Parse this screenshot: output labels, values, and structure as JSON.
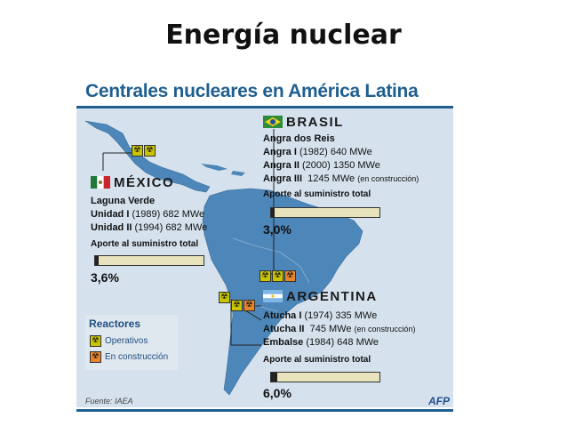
{
  "slide_title": "Energía nuclear",
  "header": "Centrales nucleares en América Latina",
  "brasil": {
    "name": "BRASIL",
    "site": "Angra dos Reis",
    "units": [
      {
        "name": "Angra I",
        "detail": "(1982) 640 MWe",
        "note": ""
      },
      {
        "name": "Angra II",
        "detail": "(2000) 1350 MWe",
        "note": ""
      },
      {
        "name": "Angra III",
        "detail": "1245 MWe",
        "note": "(en construcción)"
      }
    ],
    "supply_label": "Aporte al suministro total",
    "supply_value": "3,0%",
    "supply_fraction": 0.03
  },
  "mexico": {
    "name": "MÉXICO",
    "site": "Laguna Verde",
    "units": [
      {
        "name": "Unidad I",
        "detail": "(1989) 682 MWe"
      },
      {
        "name": "Unidad II",
        "detail": "(1994) 682 MWe"
      }
    ],
    "supply_label": "Aporte al suministro total",
    "supply_value": "3,6%",
    "supply_fraction": 0.036
  },
  "argentina": {
    "name": "ARGENTINA",
    "units": [
      {
        "name": "Atucha I",
        "detail": "(1974) 335 MWe",
        "note": ""
      },
      {
        "name": "Atucha II",
        "detail": "745 MWe",
        "note": "(en construcción)"
      },
      {
        "name": "Embalse",
        "detail": "(1984) 648 MWe",
        "note": ""
      }
    ],
    "supply_label": "Aporte al suministro total",
    "supply_value": "6,0%",
    "supply_fraction": 0.06
  },
  "legend": {
    "title": "Reactores",
    "operativos": "Operativos",
    "construccion": "En construcción"
  },
  "source": "Fuente: IAEA",
  "credit": "AFP",
  "colors": {
    "map_land": "#4d86b8",
    "map_ocean": "#d5e2ee",
    "header_blue": "#1f5f8f",
    "operativo": "#c9c400",
    "construccion": "#e8852b",
    "bar_bg": "#e8e2bd"
  },
  "icons": {
    "operativo": "radiation-icon",
    "construccion": "radiation-icon"
  }
}
